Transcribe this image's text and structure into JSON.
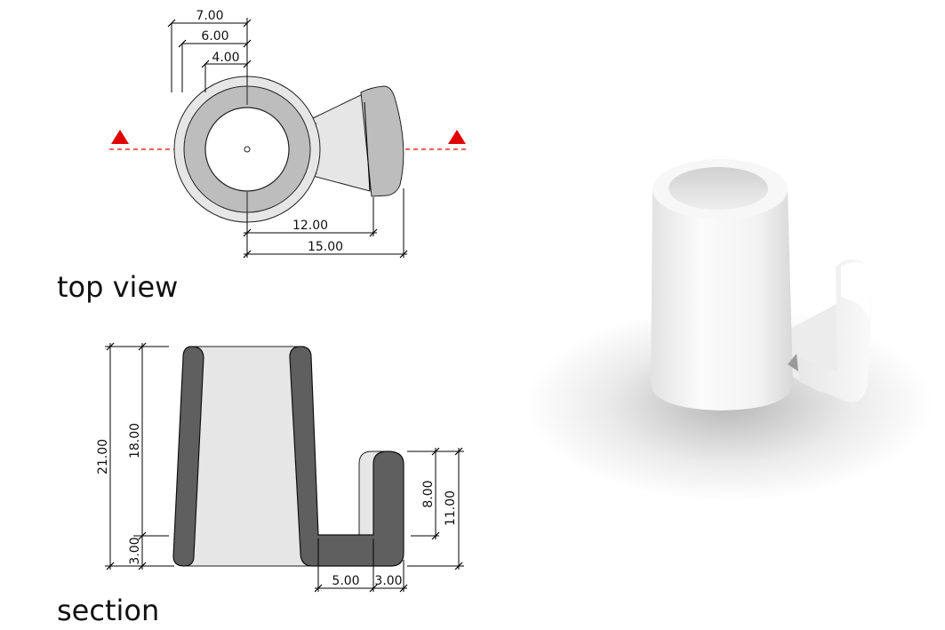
{
  "top_view": {
    "caption": "top view",
    "dimensions": {
      "d7": "7.00",
      "d6": "6.00",
      "d4": "4.00",
      "d12": "12.00",
      "d15": "15.00"
    },
    "section_marker_color": "#e00000"
  },
  "section": {
    "caption": "section",
    "dimensions": {
      "h21": "21.00",
      "h18": "18.00",
      "h3": "3.00",
      "h8": "8.00",
      "h11": "11.00",
      "w5": "5.00",
      "w3": "3.00"
    }
  },
  "colors": {
    "dark_wall": "#5f5f5f",
    "mid_fill": "#bdbdbd",
    "light_fill": "#e6e6e6"
  },
  "render_3d": {
    "icon": "cup-with-side-clip-render"
  }
}
